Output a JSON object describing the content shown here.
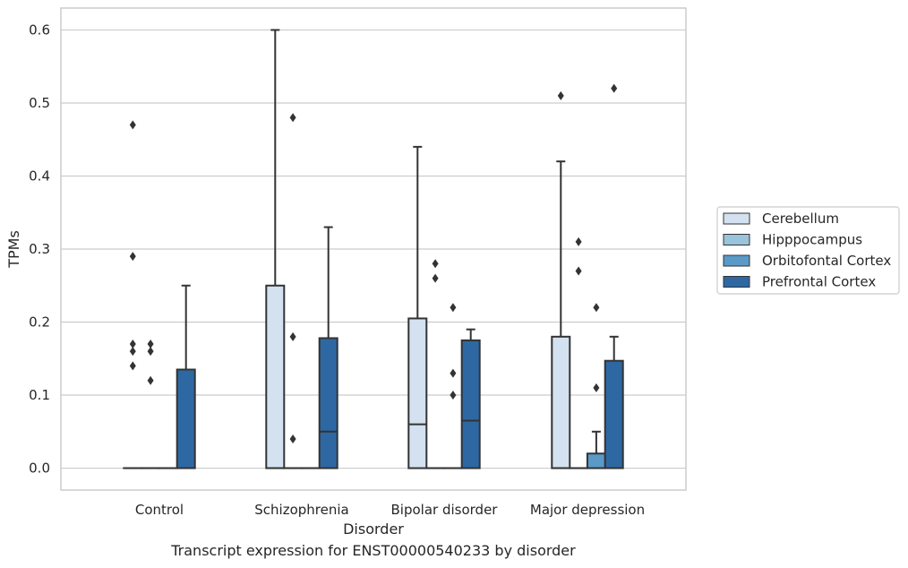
{
  "caption": "Transcript expression for ENST00000540233 by disorder",
  "chart_data": {
    "type": "box",
    "xlabel": "Disorder",
    "ylabel": "TPMs",
    "categories": [
      "Control",
      "Schizophrenia",
      "Bipolar disorder",
      "Major depression"
    ],
    "ylim": [
      -0.03,
      0.63
    ],
    "yticks": [
      0.0,
      0.1,
      0.2,
      0.3,
      0.4,
      0.5,
      0.6
    ],
    "ytick_labels": [
      "0.0",
      "0.1",
      "0.2",
      "0.3",
      "0.4",
      "0.5",
      "0.6"
    ],
    "grid": "horizontal",
    "legend_position": "right",
    "series": [
      {
        "name": "Cerebellum",
        "color": "#d3e1f0",
        "boxes": [
          {
            "q1": 0.0,
            "median": 0.0,
            "q3": 0.0,
            "whislo": 0.0,
            "whishi": 0.0,
            "fliers": [
              0.47,
              0.29,
              0.17,
              0.16,
              0.14
            ]
          },
          {
            "q1": 0.0,
            "median": 0.0,
            "q3": 0.25,
            "whislo": 0.0,
            "whishi": 0.6,
            "fliers": []
          },
          {
            "q1": 0.0,
            "median": 0.06,
            "q3": 0.205,
            "whislo": 0.0,
            "whishi": 0.44,
            "fliers": []
          },
          {
            "q1": 0.0,
            "median": 0.0,
            "q3": 0.18,
            "whislo": 0.0,
            "whishi": 0.42,
            "fliers": [
              0.51
            ]
          }
        ]
      },
      {
        "name": "Hipppocampus",
        "color": "#9ac3dc",
        "boxes": [
          {
            "q1": 0.0,
            "median": 0.0,
            "q3": 0.0,
            "whislo": 0.0,
            "whishi": 0.0,
            "fliers": [
              0.17,
              0.16,
              0.12
            ]
          },
          {
            "q1": 0.0,
            "median": 0.0,
            "q3": 0.0,
            "whislo": 0.0,
            "whishi": 0.0,
            "fliers": [
              0.48,
              0.18,
              0.04
            ]
          },
          {
            "q1": 0.0,
            "median": 0.0,
            "q3": 0.0,
            "whislo": 0.0,
            "whishi": 0.0,
            "fliers": [
              0.28,
              0.26
            ]
          },
          {
            "q1": 0.0,
            "median": 0.0,
            "q3": 0.0,
            "whislo": 0.0,
            "whishi": 0.0,
            "fliers": [
              0.31,
              0.27
            ]
          }
        ]
      },
      {
        "name": "Orbitofontal Cortex",
        "color": "#5a9ac8",
        "boxes": [
          {
            "q1": 0.0,
            "median": 0.0,
            "q3": 0.0,
            "whislo": 0.0,
            "whishi": 0.0,
            "fliers": []
          },
          {
            "q1": 0.0,
            "median": 0.0,
            "q3": 0.0,
            "whislo": 0.0,
            "whishi": 0.0,
            "fliers": []
          },
          {
            "q1": 0.0,
            "median": 0.0,
            "q3": 0.0,
            "whislo": 0.0,
            "whishi": 0.0,
            "fliers": [
              0.22,
              0.13,
              0.1
            ]
          },
          {
            "q1": 0.0,
            "median": 0.0,
            "q3": 0.02,
            "whislo": 0.0,
            "whishi": 0.05,
            "fliers": [
              0.22,
              0.11
            ]
          }
        ]
      },
      {
        "name": "Prefrontal Cortex",
        "color": "#2d68a3",
        "boxes": [
          {
            "q1": 0.0,
            "median": 0.0,
            "q3": 0.135,
            "whislo": 0.0,
            "whishi": 0.25,
            "fliers": []
          },
          {
            "q1": 0.0,
            "median": 0.05,
            "q3": 0.178,
            "whislo": 0.0,
            "whishi": 0.33,
            "fliers": []
          },
          {
            "q1": 0.0,
            "median": 0.065,
            "q3": 0.175,
            "whislo": 0.0,
            "whishi": 0.19,
            "fliers": []
          },
          {
            "q1": 0.0,
            "median": 0.0,
            "q3": 0.147,
            "whislo": 0.0,
            "whishi": 0.18,
            "fliers": [
              0.52
            ]
          }
        ]
      }
    ]
  }
}
